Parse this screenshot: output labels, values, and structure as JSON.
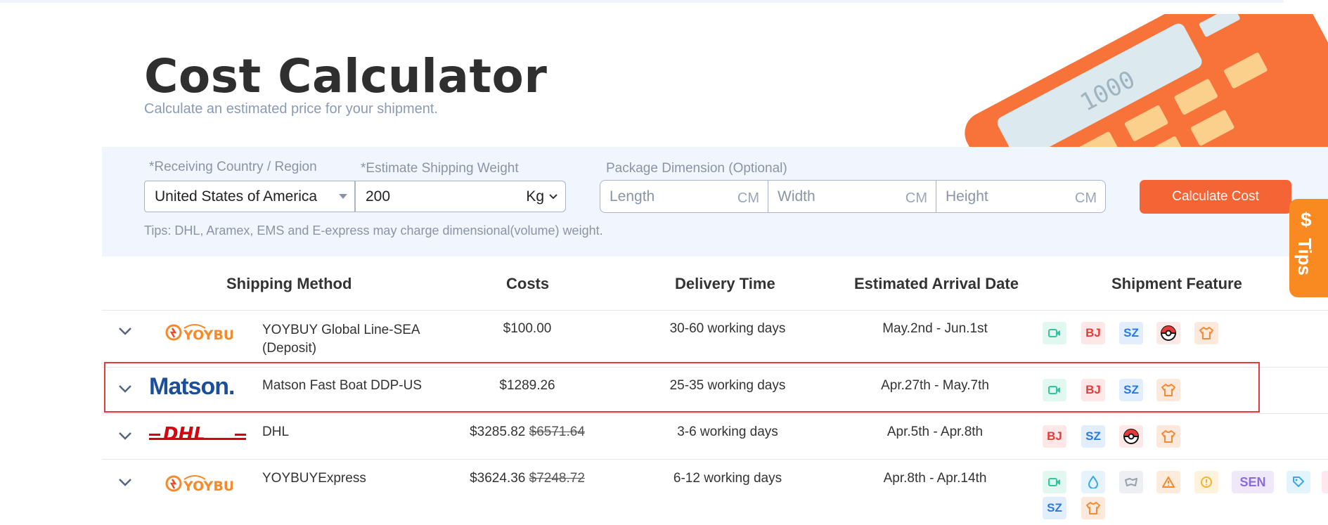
{
  "header": {
    "title": "Cost Calculator",
    "subtitle": "Calculate an estimated price for your shipment."
  },
  "illustration": {
    "display": "1000"
  },
  "form": {
    "country_label": "*Receiving Country / Region",
    "country_value": "United States of America",
    "weight_label": "*Estimate Shipping Weight",
    "weight_value": "200",
    "weight_unit": "Kg",
    "dimension_label": "Package Dimension (Optional)",
    "length_placeholder": "Length",
    "width_placeholder": "Width",
    "height_placeholder": "Height",
    "dimension_unit": "CM",
    "calculate_label": "Calculate Cost",
    "tips": "Tips: DHL, Aramex, EMS and E-express may charge dimensional(volume) weight."
  },
  "tips_tab": {
    "symbol": "$",
    "label": "Tips"
  },
  "table": {
    "columns": {
      "method": "Shipping Method",
      "costs": "Costs",
      "delivery": "Delivery Time",
      "arrival": "Estimated Arrival Date",
      "feature": "Shipment Feature"
    },
    "rows": [
      {
        "logo": "YOYBUY",
        "name_line1": "YOYBUY Global Line-SEA",
        "name_line2": "(Deposit)",
        "cost": "$100.00",
        "original_cost": "",
        "delivery": "30-60 working days",
        "arrival": "May.2nd - Jun.1st",
        "features": [
          "video-icon",
          "BJ",
          "SZ",
          "pokeball-icon",
          "shirt-icon"
        ]
      },
      {
        "logo": "Matson.",
        "name_line1": "Matson Fast Boat DDP-US",
        "name_line2": "",
        "cost": "$1289.26",
        "original_cost": "",
        "delivery": "25-35 working days",
        "arrival": "Apr.27th - May.7th",
        "features": [
          "video-icon",
          "BJ",
          "SZ",
          "shirt-icon"
        ]
      },
      {
        "logo": "DHL",
        "name_line1": "DHL",
        "name_line2": "",
        "cost": "$3285.82",
        "original_cost": "$6571.64",
        "delivery": "3-6 working days",
        "arrival": "Apr.5th - Apr.8th",
        "features": [
          "BJ",
          "SZ",
          "pokeball-icon",
          "shirt-icon"
        ]
      },
      {
        "logo": "YOYBUY",
        "name_line1": "YOYBUYExpress",
        "name_line2": "",
        "cost": "$3624.36",
        "original_cost": "$7248.72",
        "delivery": "6-12 working days",
        "arrival": "Apr.8th - Apr.14th",
        "features": [
          "video-icon",
          "drop-icon",
          "cloth-icon",
          "warning-icon",
          "alert-icon",
          "SEN",
          "tag-icon",
          "pink-icon",
          "SZ",
          "shirt-icon"
        ]
      }
    ]
  },
  "colors": {
    "accent": "#f56435",
    "tips_tab": "#f98a22",
    "highlight_border": "#e7393b",
    "panel_bg": "#f1f5fd"
  }
}
